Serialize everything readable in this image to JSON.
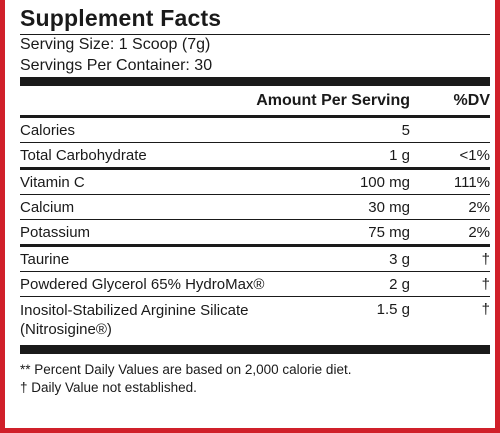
{
  "title": "Supplement Facts",
  "serving_size": "Serving Size: 1 Scoop (7g)",
  "servings_per_container": "Servings Per Container: 30",
  "header": {
    "amount": "Amount Per Serving",
    "dv": "%DV"
  },
  "groups": [
    [
      {
        "name": "Calories",
        "amount": "5",
        "dv": ""
      },
      {
        "name": "Total Carbohydrate",
        "amount": "1 g",
        "dv": "<1%"
      }
    ],
    [
      {
        "name": "Vitamin C",
        "amount": "100 mg",
        "dv": "111%"
      },
      {
        "name": "Calcium",
        "amount": "30 mg",
        "dv": "2%"
      },
      {
        "name": "Potassium",
        "amount": "75 mg",
        "dv": "2%"
      }
    ],
    [
      {
        "name": "Taurine",
        "amount": "3 g",
        "dv": "†"
      },
      {
        "name": "Powdered Glycerol 65% HydroMax®",
        "amount": "2 g",
        "dv": "†"
      },
      {
        "name": "Inositol-Stabilized Arginine Silicate (Nitrosigine®)",
        "amount": "1.5 g",
        "dv": "†"
      }
    ]
  ],
  "footnotes": [
    "** Percent Daily Values are based on 2,000 calorie diet.",
    "† Daily Value not established."
  ],
  "colors": {
    "border": "#d0202a",
    "rule": "#1a1a1a"
  }
}
